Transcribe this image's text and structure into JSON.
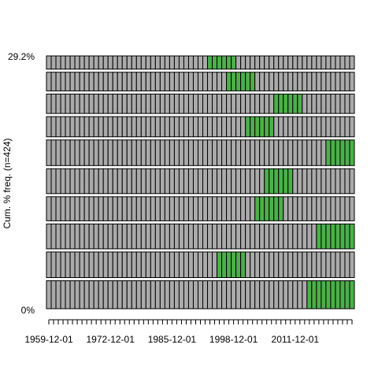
{
  "chart_data": {
    "type": "heatmap",
    "title": "",
    "xlabel": "",
    "ylabel": "Cum. % freq. (n=424)",
    "y_tick_labels": [
      "29.2%",
      "0%"
    ],
    "x_tick_labels": [
      "1959-12-01",
      "1972-12-01",
      "1985-12-01",
      "1998-12-01",
      "2011-12-01"
    ],
    "x_tick_positions": [
      0,
      13,
      26,
      39,
      52
    ],
    "n_columns": 65,
    "rows": [
      {
        "highlight_start": 34,
        "highlight_length": 6
      },
      {
        "highlight_start": 38,
        "highlight_length": 6
      },
      {
        "highlight_start": 48,
        "highlight_length": 6
      },
      {
        "highlight_start": 42,
        "highlight_length": 6
      },
      {
        "highlight_start": 59,
        "highlight_length": 6
      },
      {
        "highlight_start": 46,
        "highlight_length": 6
      },
      {
        "highlight_start": 44,
        "highlight_length": 6
      },
      {
        "highlight_start": 57,
        "highlight_length": 8
      },
      {
        "highlight_start": 36,
        "highlight_length": 6
      },
      {
        "highlight_start": 55,
        "highlight_length": 10
      }
    ],
    "row_weights": [
      17,
      24,
      25,
      26,
      33,
      32,
      31,
      32,
      33,
      36
    ],
    "colors": {
      "cell": "#aaaaaa",
      "highlight": "#4daf4a",
      "border": "#000000"
    }
  }
}
